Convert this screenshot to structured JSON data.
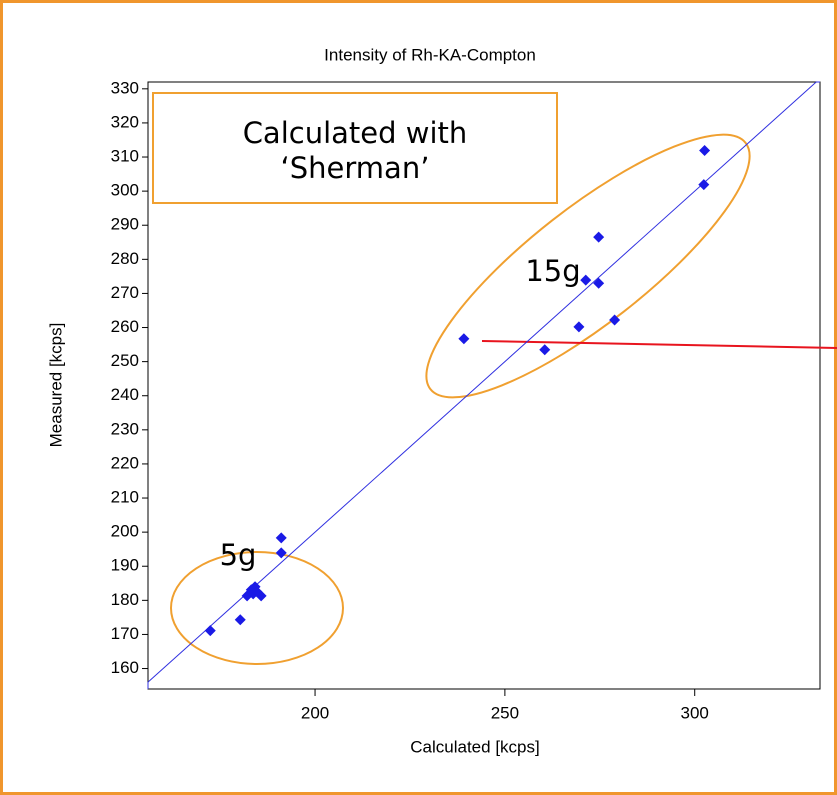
{
  "chart_data": {
    "type": "scatter",
    "title": "Intensity of Rh-KA-Compton",
    "x_label": "Calculated [kcps]",
    "y_label": "Measured [kcps]",
    "note_lines": [
      "Calculated with",
      "‘Sherman’"
    ],
    "group_labels": [
      "15g",
      "5g"
    ],
    "series": [
      {
        "color": "#1a1ae6",
        "x": [
          172.4,
          180.3,
          182.1,
          183.2,
          184.2,
          184.7,
          185.8,
          183.7,
          191.1,
          191.1,
          239.2,
          260.5,
          269.5,
          271.3,
          274.7,
          274.7,
          278.9,
          302.4,
          302.6
        ],
        "values": [
          171.1,
          174.3,
          181.3,
          183.1,
          184.0,
          182.5,
          181.3,
          181.9,
          198.3,
          193.9,
          256.7,
          253.5,
          260.2,
          273.9,
          273.0,
          286.5,
          262.2,
          301.9,
          311.9
        ]
      }
    ],
    "xlim": [
      156,
      333
    ],
    "ylim": [
      154,
      332
    ],
    "xticks": [
      200,
      250,
      300
    ],
    "yticks": [
      160,
      170,
      180,
      190,
      200,
      210,
      220,
      230,
      240,
      250,
      260,
      270,
      280,
      290,
      300,
      310,
      320,
      330
    ]
  }
}
